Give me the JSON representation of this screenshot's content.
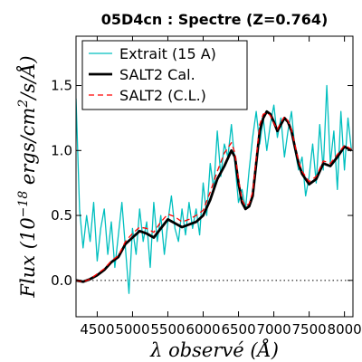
{
  "chart_data": {
    "type": "line",
    "title": "05D4cn : Spectre (Z=0.764)",
    "xlabel": "λ observé (Å)",
    "ylabel_parts": [
      "Flux (10",
      "−18",
      " ergs/cm",
      "2",
      "/s/Å)"
    ],
    "xlim": [
      4200,
      8120
    ],
    "ylim": [
      -0.28,
      1.88
    ],
    "xticks": [
      4500,
      5000,
      5500,
      6000,
      6500,
      7000,
      7500,
      8000
    ],
    "xtick_labels": [
      "4500",
      "5000",
      "5500",
      "6000",
      "6500",
      "7000",
      "7500",
      "8000"
    ],
    "yticks": [
      0.0,
      0.5,
      1.0,
      1.5
    ],
    "ytick_labels": [
      "0.0",
      "0.5",
      "1.0",
      "1.5"
    ],
    "reference_line": {
      "y": 0.0,
      "style": "dotted",
      "color": "#000000"
    },
    "legend_position": "top-left",
    "series": [
      {
        "name": "Extrait (15 A)",
        "color": "#00bfbf",
        "style": "solid",
        "x": [
          4200,
          4250,
          4300,
          4350,
          4400,
          4450,
          4500,
          4550,
          4600,
          4650,
          4700,
          4750,
          4800,
          4850,
          4900,
          4950,
          5000,
          5050,
          5100,
          5150,
          5200,
          5250,
          5300,
          5350,
          5400,
          5450,
          5500,
          5550,
          5600,
          5650,
          5700,
          5750,
          5800,
          5850,
          5900,
          5950,
          6000,
          6050,
          6100,
          6150,
          6200,
          6250,
          6300,
          6350,
          6400,
          6450,
          6500,
          6550,
          6600,
          6650,
          6700,
          6750,
          6800,
          6850,
          6900,
          6950,
          7000,
          7050,
          7100,
          7150,
          7200,
          7250,
          7300,
          7350,
          7400,
          7450,
          7500,
          7550,
          7600,
          7650,
          7700,
          7750,
          7800,
          7850,
          7900,
          7950,
          8000,
          8050,
          8100
        ],
        "y": [
          1.4,
          0.55,
          0.25,
          0.5,
          0.3,
          0.6,
          0.15,
          0.4,
          0.55,
          0.2,
          0.45,
          0.1,
          0.35,
          0.6,
          0.25,
          -0.1,
          0.4,
          0.2,
          0.55,
          0.3,
          0.45,
          0.1,
          0.6,
          0.3,
          0.5,
          0.2,
          0.45,
          0.65,
          0.4,
          0.3,
          0.55,
          0.35,
          0.6,
          0.4,
          0.55,
          0.35,
          0.75,
          0.5,
          0.9,
          0.7,
          1.15,
          0.8,
          1.05,
          0.95,
          1.2,
          0.9,
          0.6,
          0.7,
          0.55,
          0.85,
          1.1,
          1.3,
          1.05,
          1.25,
          1.0,
          1.2,
          1.35,
          1.1,
          1.25,
          0.95,
          1.15,
          1.3,
          1.0,
          0.85,
          0.95,
          0.65,
          0.8,
          1.05,
          0.75,
          1.2,
          0.85,
          1.5,
          0.9,
          1.15,
          0.7,
          1.3,
          0.85,
          1.25,
          1.0
        ]
      },
      {
        "name": "SALT2 Cal.",
        "color": "#000000",
        "style": "solid",
        "x": [
          4200,
          4300,
          4400,
          4500,
          4600,
          4700,
          4800,
          4900,
          5000,
          5100,
          5200,
          5300,
          5400,
          5500,
          5600,
          5700,
          5800,
          5900,
          6000,
          6100,
          6200,
          6300,
          6400,
          6450,
          6500,
          6550,
          6600,
          6650,
          6700,
          6750,
          6800,
          6850,
          6900,
          6950,
          7000,
          7050,
          7100,
          7150,
          7200,
          7250,
          7300,
          7350,
          7400,
          7500,
          7600,
          7700,
          7800,
          7900,
          8000,
          8100
        ],
        "y": [
          0.0,
          -0.01,
          0.01,
          0.04,
          0.08,
          0.14,
          0.18,
          0.28,
          0.33,
          0.38,
          0.36,
          0.33,
          0.4,
          0.47,
          0.44,
          0.41,
          0.43,
          0.45,
          0.5,
          0.62,
          0.78,
          0.88,
          1.0,
          0.95,
          0.75,
          0.6,
          0.55,
          0.57,
          0.65,
          0.9,
          1.15,
          1.25,
          1.3,
          1.28,
          1.22,
          1.15,
          1.2,
          1.25,
          1.22,
          1.15,
          1.02,
          0.9,
          0.82,
          0.74,
          0.78,
          0.9,
          0.88,
          0.95,
          1.03,
          1.0
        ]
      },
      {
        "name": "SALT2 (C.L.)",
        "color": "#ff0000",
        "style": "dashed",
        "x": [
          4200,
          4300,
          4400,
          4500,
          4600,
          4700,
          4800,
          4900,
          5000,
          5100,
          5200,
          5300,
          5400,
          5500,
          5600,
          5700,
          5800,
          5900,
          6000,
          6100,
          6200,
          6300,
          6400,
          6450,
          6500,
          6550,
          6600,
          6650,
          6700,
          6750,
          6800,
          6850,
          6900,
          6950,
          7000,
          7050,
          7100,
          7150,
          7200,
          7250,
          7300,
          7350,
          7400,
          7500,
          7600,
          7700,
          7800,
          7900,
          8000,
          8100
        ],
        "y": [
          0.0,
          -0.01,
          0.01,
          0.05,
          0.09,
          0.15,
          0.19,
          0.3,
          0.36,
          0.41,
          0.4,
          0.37,
          0.45,
          0.51,
          0.49,
          0.45,
          0.47,
          0.5,
          0.54,
          0.68,
          0.84,
          0.98,
          1.06,
          0.98,
          0.78,
          0.62,
          0.57,
          0.59,
          0.68,
          0.94,
          1.2,
          1.28,
          1.29,
          1.27,
          1.21,
          1.16,
          1.22,
          1.26,
          1.23,
          1.16,
          1.04,
          0.92,
          0.84,
          0.76,
          0.8,
          0.92,
          0.9,
          0.97,
          1.04,
          1.01
        ]
      }
    ]
  }
}
